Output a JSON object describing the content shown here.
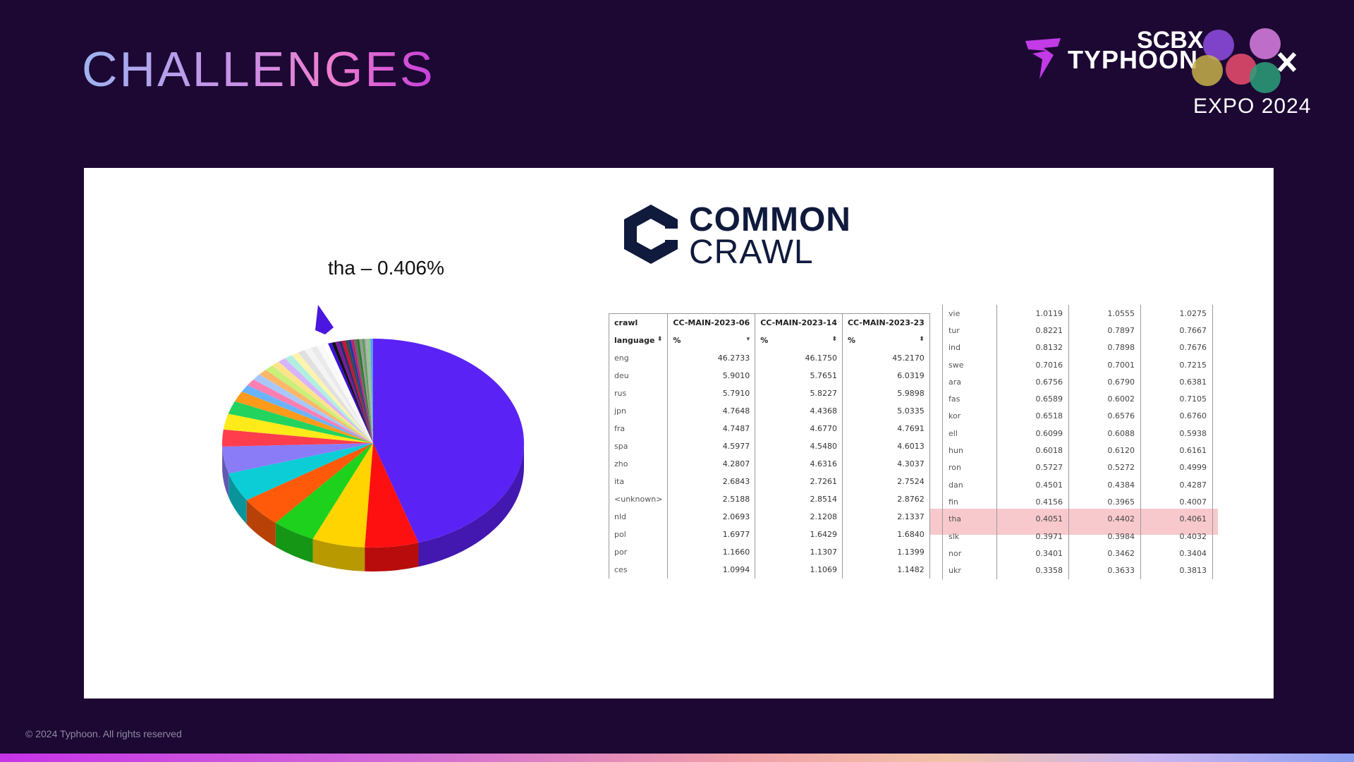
{
  "slide": {
    "title": "CHALLENGES",
    "footer": "© 2024 Typhoon. All rights reserved"
  },
  "brand": {
    "typhoon": "TYPHOON",
    "scbx": "SCBX",
    "expo": "EXPO 2024",
    "icons": [
      "typhoon-bolt-icon",
      "scbx-dots-icon"
    ]
  },
  "common_crawl": {
    "word1": "COMMON",
    "word2": "CRAWL"
  },
  "chart_data": {
    "type": "pie",
    "annotation": "tha – 0.406%",
    "slices": [
      {
        "value": 46.27,
        "color": "#5b22f5"
      },
      {
        "value": 5.9,
        "color": "#ff1010"
      },
      {
        "value": 5.79,
        "color": "#ffd400"
      },
      {
        "value": 4.76,
        "color": "#1dd11d"
      },
      {
        "value": 4.75,
        "color": "#ff5a0a"
      },
      {
        "value": 4.6,
        "color": "#0ccdd6"
      },
      {
        "value": 4.28,
        "color": "#8a7cf7"
      },
      {
        "value": 2.68,
        "color": "#ff3d4d"
      },
      {
        "value": 2.52,
        "color": "#ffea1a"
      },
      {
        "value": 2.07,
        "color": "#22d45e"
      },
      {
        "value": 1.7,
        "color": "#ff9a1a"
      },
      {
        "value": 1.17,
        "color": "#6ab4ff"
      },
      {
        "value": 1.1,
        "color": "#ff7fb0"
      },
      {
        "value": 1.02,
        "color": "#a7c8ff"
      },
      {
        "value": 0.99,
        "color": "#ffb86b"
      },
      {
        "value": 0.96,
        "color": "#c8f07a"
      },
      {
        "value": 0.92,
        "color": "#ffe38a"
      },
      {
        "value": 0.88,
        "color": "#d8b4ff"
      },
      {
        "value": 0.86,
        "color": "#b0f0e0"
      },
      {
        "value": 0.82,
        "color": "#fff3b0"
      },
      {
        "value": 0.79,
        "color": "#e0e0e0"
      },
      {
        "value": 0.77,
        "color": "#f4f4f4"
      },
      {
        "value": 0.7,
        "color": "#eaeaea"
      },
      {
        "value": 0.66,
        "color": "#f9f9f9"
      },
      {
        "value": 0.62,
        "color": "#ffffff"
      },
      {
        "value": 0.41,
        "color": "#3c10d8"
      },
      {
        "value": 0.4,
        "color": "#111111"
      },
      {
        "value": 0.38,
        "color": "#7a1a9a"
      },
      {
        "value": 0.36,
        "color": "#2a2a6a"
      },
      {
        "value": 0.34,
        "color": "#d01030"
      },
      {
        "value": 0.33,
        "color": "#444444"
      },
      {
        "value": 0.32,
        "color": "#1a3aa0"
      },
      {
        "value": 0.31,
        "color": "#c0206a"
      },
      {
        "value": 0.3,
        "color": "#6a6a6a"
      },
      {
        "value": 0.3,
        "color": "#2a7a2a"
      },
      {
        "value": 0.3,
        "color": "#9a9a9a"
      },
      {
        "value": 0.3,
        "color": "#5aa05a"
      },
      {
        "value": 0.3,
        "color": "#b0b0b0"
      },
      {
        "value": 0.3,
        "color": "#88cc88"
      },
      {
        "value": 0.3,
        "color": "#5a9aff"
      }
    ]
  },
  "table_main": {
    "headers": [
      "crawl",
      "CC-MAIN-2023-06",
      "CC-MAIN-2023-14",
      "CC-MAIN-2023-23"
    ],
    "subheaders": [
      "language",
      "%",
      "%",
      "%"
    ],
    "rows": [
      [
        "eng",
        "46.2733",
        "46.1750",
        "45.2170"
      ],
      [
        "deu",
        "5.9010",
        "5.7651",
        "6.0319"
      ],
      [
        "rus",
        "5.7910",
        "5.8227",
        "5.9898"
      ],
      [
        "jpn",
        "4.7648",
        "4.4368",
        "5.0335"
      ],
      [
        "fra",
        "4.7487",
        "4.6770",
        "4.7691"
      ],
      [
        "spa",
        "4.5977",
        "4.5480",
        "4.6013"
      ],
      [
        "zho",
        "4.2807",
        "4.6316",
        "4.3037"
      ],
      [
        "ita",
        "2.6843",
        "2.7261",
        "2.7524"
      ],
      [
        "<unknown>",
        "2.5188",
        "2.8514",
        "2.8762"
      ],
      [
        "nld",
        "2.0693",
        "2.1208",
        "2.1337"
      ],
      [
        "pol",
        "1.6977",
        "1.6429",
        "1.6840"
      ],
      [
        "por",
        "1.1660",
        "1.1307",
        "1.1399"
      ],
      [
        "ces",
        "1.0994",
        "1.1069",
        "1.1482"
      ]
    ]
  },
  "table_side": {
    "highlight_row": "tha",
    "highlight_color": "#f7c9cd",
    "rows": [
      [
        "vie",
        "1.0119",
        "1.0555",
        "1.0275"
      ],
      [
        "tur",
        "0.8221",
        "0.7897",
        "0.7667"
      ],
      [
        "ind",
        "0.8132",
        "0.7898",
        "0.7676"
      ],
      [
        "swe",
        "0.7016",
        "0.7001",
        "0.7215"
      ],
      [
        "ara",
        "0.6756",
        "0.6790",
        "0.6381"
      ],
      [
        "fas",
        "0.6589",
        "0.6002",
        "0.7105"
      ],
      [
        "kor",
        "0.6518",
        "0.6576",
        "0.6760"
      ],
      [
        "ell",
        "0.6099",
        "0.6088",
        "0.5938"
      ],
      [
        "hun",
        "0.6018",
        "0.6120",
        "0.6161"
      ],
      [
        "ron",
        "0.5727",
        "0.5272",
        "0.4999"
      ],
      [
        "dan",
        "0.4501",
        "0.4384",
        "0.4287"
      ],
      [
        "fin",
        "0.4156",
        "0.3965",
        "0.4007"
      ],
      [
        "tha",
        "0.4051",
        "0.4402",
        "0.4061"
      ],
      [
        "slk",
        "0.3971",
        "0.3984",
        "0.4032"
      ],
      [
        "nor",
        "0.3401",
        "0.3462",
        "0.3404"
      ],
      [
        "ukr",
        "0.3358",
        "0.3633",
        "0.3813"
      ]
    ]
  }
}
